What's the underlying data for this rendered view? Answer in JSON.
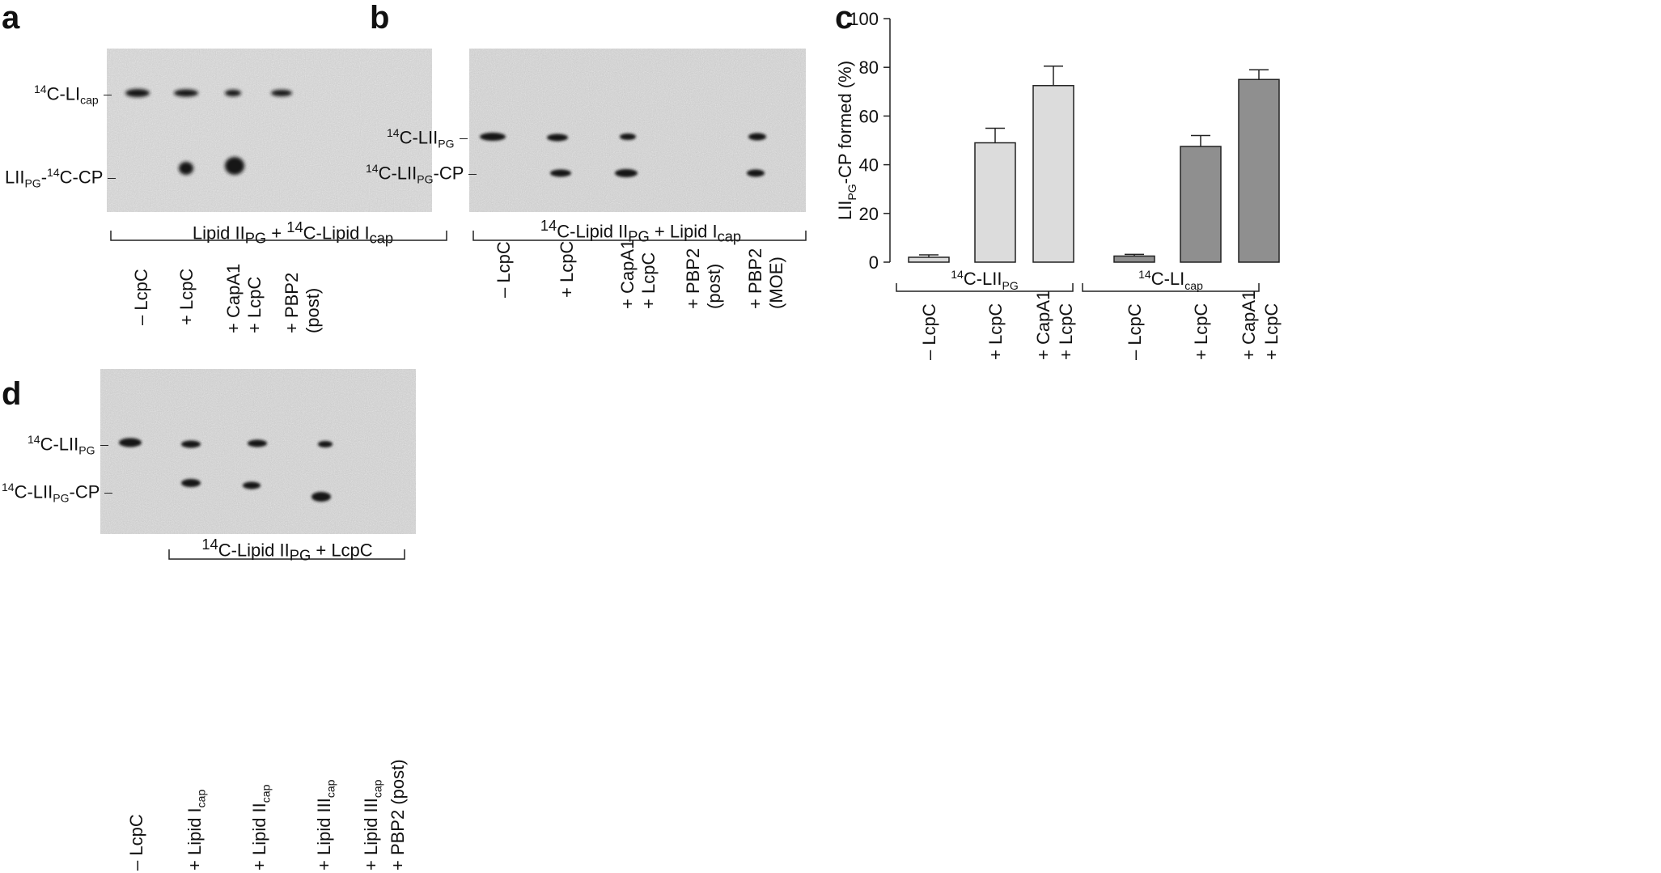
{
  "panel_letters": {
    "a": "a",
    "b": "b",
    "c": "c",
    "d": "d"
  },
  "panel_a": {
    "band_label_top": "C-LI",
    "band_label_top_sup": "14",
    "band_label_top_sub": "cap",
    "band_label_bottom_pre": "LII",
    "band_label_bottom_sub": "PG",
    "band_label_bottom_mid": "-",
    "band_label_bottom_sup": "14",
    "band_label_bottom_post": "C-CP",
    "condition_part1": "Lipid II",
    "condition_sub1": "PG",
    "condition_part2": " + ",
    "condition_sup2": "14",
    "condition_part3": "C-Lipid I",
    "condition_sub3": "cap",
    "lanes": [
      {
        "line1": "– LcpC",
        "line2": ""
      },
      {
        "line1": "+ LcpC",
        "line2": ""
      },
      {
        "line1": "+ CapA1",
        "line2": "+ LcpC"
      },
      {
        "line1": "+ PBP2",
        "line2": "(post)"
      }
    ]
  },
  "panel_b": {
    "band_label_top_sup": "14",
    "band_label_top": "C-LII",
    "band_label_top_sub": "PG",
    "band_label_bottom_sup": "14",
    "band_label_bottom": "C-LII",
    "band_label_bottom_sub": "PG",
    "band_label_bottom_post": "-CP",
    "condition_sup1": "14",
    "condition_part1": "C-Lipid II",
    "condition_sub1": "PG",
    "condition_part2": " + Lipid I",
    "condition_sub2": "cap",
    "lanes": [
      {
        "line1": "– LcpC",
        "line2": ""
      },
      {
        "line1": "+ LcpC",
        "line2": ""
      },
      {
        "line1": "+ CapA1",
        "line2": "+ LcpC"
      },
      {
        "line1": "+ PBP2",
        "line2": "(post)"
      },
      {
        "line1": "+ PBP2",
        "line2": "(MOE)"
      }
    ]
  },
  "panel_c": {
    "chart_data": {
      "type": "bar",
      "ylabel_pre": "LII",
      "ylabel_sub": "PG",
      "ylabel_post": "-CP formed (%)",
      "ylim": [
        0,
        100
      ],
      "yticks": [
        "0",
        "20",
        "40",
        "60",
        "80",
        "100"
      ],
      "groups": [
        {
          "label_sup": "14",
          "label": "C-LII",
          "label_sub": "PG",
          "color": "#dcdcdc"
        },
        {
          "label_sup": "14",
          "label": "C-LI",
          "label_sub": "cap",
          "color": "#8f8f8f"
        }
      ],
      "categories": [
        {
          "line1": "– LcpC",
          "line2": ""
        },
        {
          "line1": "+ LcpC",
          "line2": ""
        },
        {
          "line1": "+ CapA1",
          "line2": "+ LcpC"
        },
        {
          "line1": "– LcpC",
          "line2": ""
        },
        {
          "line1": "+ LcpC",
          "line2": ""
        },
        {
          "line1": "+ CapA1",
          "line2": "+ LcpC"
        }
      ],
      "values": [
        2,
        49,
        72.5,
        2.5,
        47.5,
        75
      ],
      "errors": [
        1,
        6,
        8,
        0.7,
        4.5,
        4
      ]
    }
  },
  "panel_d": {
    "band_label_top_sup": "14",
    "band_label_top": "C-LII",
    "band_label_top_sub": "PG",
    "band_label_bottom_sup": "14",
    "band_label_bottom": "C-LII",
    "band_label_bottom_sub": "PG",
    "band_label_bottom_post": "-CP",
    "condition_sup1": "14",
    "condition_part1": "C-Lipid II",
    "condition_sub1": "PG",
    "condition_part2": " + LcpC",
    "lanes": [
      {
        "line1": "– LcpC",
        "line1_sub": "",
        "line2": "",
        "line2_sub": ""
      },
      {
        "line1": "+ Lipid I",
        "line1_sub": "cap",
        "line2": "",
        "line2_sub": ""
      },
      {
        "line1": "+ Lipid II",
        "line1_sub": "cap",
        "line2": "",
        "line2_sub": ""
      },
      {
        "line1": "+ Lipid III",
        "line1_sub": "cap",
        "line2": "",
        "line2_sub": ""
      },
      {
        "line1": "+ Lipid III",
        "line1_sub": "cap",
        "line2": "+ PBP2 (post)",
        "line2_sub": ""
      }
    ]
  }
}
